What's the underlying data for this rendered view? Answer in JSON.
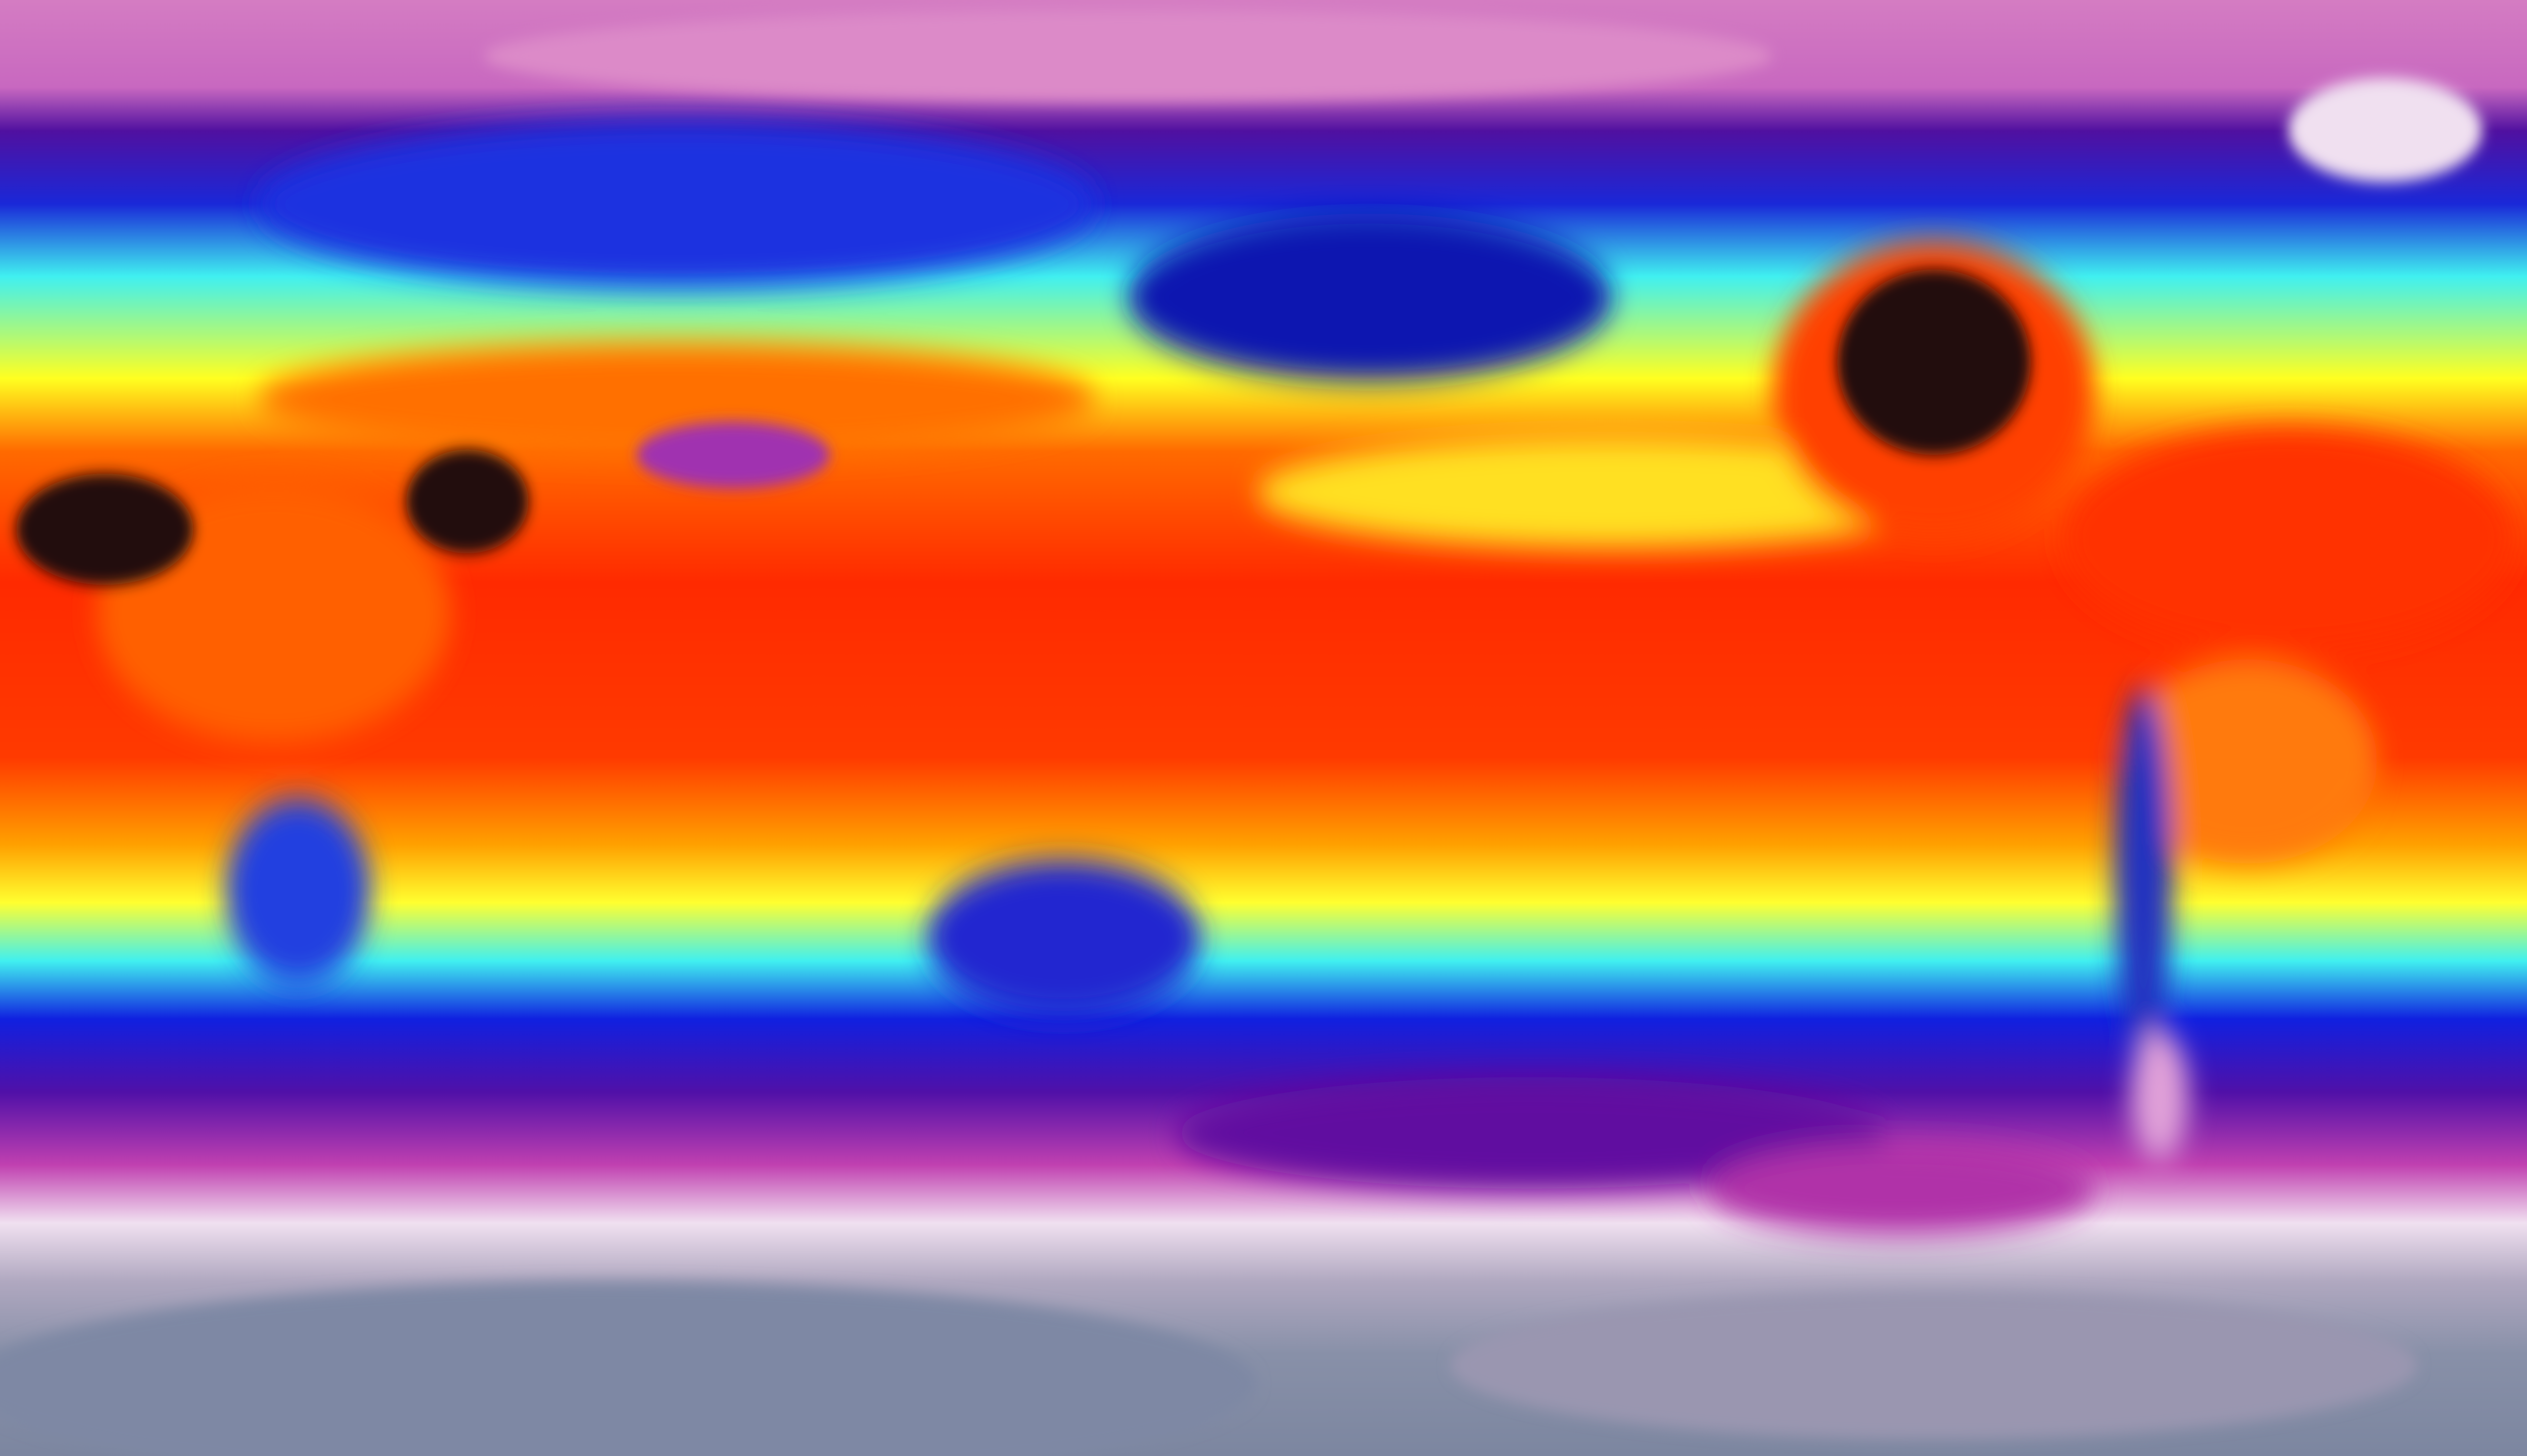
{
  "map": {
    "projection": "equirectangular",
    "colormap": [
      "#8890a8",
      "#f0e0f0",
      "#c040b0",
      "#6010a0",
      "#1030e0",
      "#40f0f0",
      "#ffff20",
      "#ff8000",
      "#ff2000",
      "#200808"
    ],
    "colors": {
      "polar_north": "#d67cc4",
      "antarctic": "#8890a8",
      "tropics": "#ff3000",
      "hot_desert": "#200808",
      "cold_ocean": "#1030e0"
    }
  }
}
